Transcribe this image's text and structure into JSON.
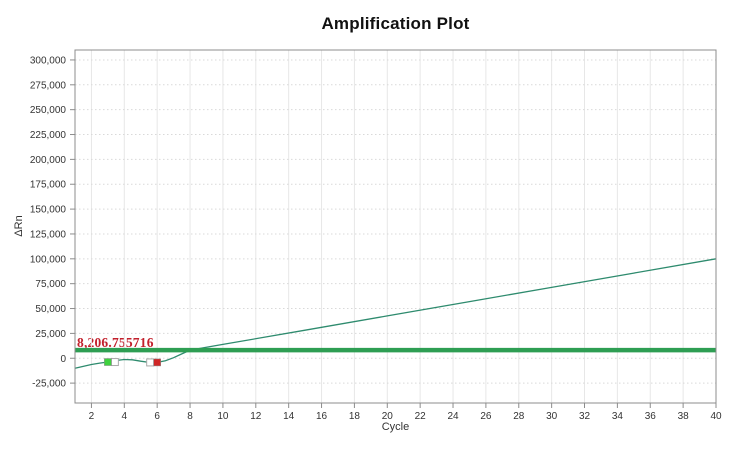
{
  "chart_data": {
    "type": "line",
    "title": "Amplification Plot",
    "xlabel": "Cycle",
    "ylabel": "ΔRn",
    "xlim": [
      1,
      40
    ],
    "ylim": [
      -45000,
      310000
    ],
    "xticks": [
      2,
      4,
      6,
      8,
      10,
      12,
      14,
      16,
      18,
      20,
      22,
      24,
      26,
      28,
      30,
      32,
      34,
      36,
      38,
      40
    ],
    "yticks": [
      {
        "value": 300000,
        "label": "300,000"
      },
      {
        "value": 275000,
        "label": "275,000"
      },
      {
        "value": 250000,
        "label": "250,000"
      },
      {
        "value": 225000,
        "label": "225,000"
      },
      {
        "value": 200000,
        "label": "200,000"
      },
      {
        "value": 175000,
        "label": "175,000"
      },
      {
        "value": 150000,
        "label": "150,000"
      },
      {
        "value": 125000,
        "label": "125,000"
      },
      {
        "value": 100000,
        "label": "100,000"
      },
      {
        "value": 75000,
        "label": "75,000"
      },
      {
        "value": 50000,
        "label": "50,000"
      },
      {
        "value": 25000,
        "label": "25,000"
      },
      {
        "value": 0,
        "label": "0"
      },
      {
        "value": -25000,
        "label": "-25,000"
      }
    ],
    "grid": {
      "horizontal": "dotted",
      "vertical": "solid",
      "legend": "none"
    },
    "series": [
      {
        "name": "amplification-curve",
        "color": "#2e8b6e",
        "points": [
          [
            1,
            -10000
          ],
          [
            1.5,
            -8200
          ],
          [
            2,
            -6300
          ],
          [
            2.5,
            -4900
          ],
          [
            3,
            -3800
          ],
          [
            3.5,
            -2300
          ],
          [
            4,
            -1300
          ],
          [
            4.5,
            -1600
          ],
          [
            5,
            -3000
          ],
          [
            5.5,
            -4200
          ],
          [
            6,
            -4200
          ],
          [
            6.5,
            -2500
          ],
          [
            7,
            600
          ],
          [
            7.5,
            4400
          ],
          [
            8,
            8200
          ],
          [
            10,
            13900
          ],
          [
            15,
            28250
          ],
          [
            20,
            42600
          ],
          [
            25,
            56950
          ],
          [
            30,
            71300
          ],
          [
            35,
            85650
          ],
          [
            40,
            100000
          ]
        ]
      }
    ],
    "threshold": {
      "value": 8206.755716,
      "label": "8,206.755716",
      "line_color": "#2e9e53",
      "label_color": "#c2202c"
    },
    "markers": [
      {
        "x": 3,
        "y": -3800,
        "color": "#3fd23f",
        "ghost_side": "right",
        "name": "threshold-handle-left"
      },
      {
        "x": 6,
        "y": -4200,
        "color": "#cf2626",
        "ghost_side": "left",
        "name": "threshold-handle-right"
      }
    ],
    "colors": {
      "grid_h": "#d9d9d9",
      "grid_v": "#e7e7e7",
      "border": "#8c8c8c",
      "tick": "#8c8c8c",
      "tick_text": "#333333"
    }
  }
}
